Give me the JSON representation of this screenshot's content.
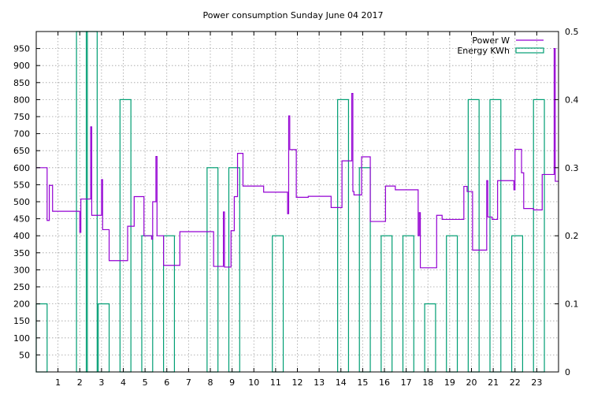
{
  "chart_data": {
    "type": "line",
    "title": "Power consumption Sunday June 04 2017",
    "grid": true,
    "legend_position": "top-right",
    "x": {
      "range": [
        0,
        24
      ],
      "ticks": [
        "1",
        "2",
        "3",
        "4",
        "5",
        "6",
        "7",
        "8",
        "9",
        "10",
        "11",
        "12",
        "13",
        "14",
        "15",
        "16",
        "17",
        "18",
        "19",
        "20",
        "21",
        "22",
        "23"
      ]
    },
    "y_left": {
      "range": [
        0,
        1000
      ],
      "ticks": [
        "50",
        "100",
        "150",
        "200",
        "250",
        "300",
        "350",
        "400",
        "450",
        "500",
        "550",
        "600",
        "650",
        "700",
        "750",
        "800",
        "850",
        "900",
        "950"
      ]
    },
    "y_right": {
      "range": [
        0,
        0.5
      ],
      "ticks": [
        "0",
        "0.1",
        "0.2",
        "0.3",
        "0.4",
        "0.5"
      ]
    },
    "colors": {
      "power": "#9400d3",
      "energy": "#009e73"
    },
    "series": [
      {
        "name": "Power W",
        "type": "step",
        "axis": "y_left",
        "points": [
          [
            0.0,
            600
          ],
          [
            0.5,
            600
          ],
          [
            0.5,
            445
          ],
          [
            0.6,
            445
          ],
          [
            0.6,
            548
          ],
          [
            0.75,
            548
          ],
          [
            0.75,
            472
          ],
          [
            2.0,
            472
          ],
          [
            2.0,
            410
          ],
          [
            2.05,
            410
          ],
          [
            2.05,
            508
          ],
          [
            2.5,
            508
          ],
          [
            2.5,
            720
          ],
          [
            2.55,
            720
          ],
          [
            2.55,
            460
          ],
          [
            3.0,
            460
          ],
          [
            3.0,
            565
          ],
          [
            3.05,
            565
          ],
          [
            3.05,
            418
          ],
          [
            3.35,
            418
          ],
          [
            3.35,
            327
          ],
          [
            4.2,
            327
          ],
          [
            4.2,
            428
          ],
          [
            4.5,
            428
          ],
          [
            4.5,
            515
          ],
          [
            4.95,
            515
          ],
          [
            4.95,
            400
          ],
          [
            5.3,
            400
          ],
          [
            5.3,
            390
          ],
          [
            5.35,
            390
          ],
          [
            5.35,
            500
          ],
          [
            5.5,
            500
          ],
          [
            5.5,
            633
          ],
          [
            5.55,
            633
          ],
          [
            5.55,
            400
          ],
          [
            5.85,
            400
          ],
          [
            5.85,
            313
          ],
          [
            6.6,
            313
          ],
          [
            6.6,
            412
          ],
          [
            8.15,
            412
          ],
          [
            8.15,
            310
          ],
          [
            8.6,
            310
          ],
          [
            8.6,
            470
          ],
          [
            8.65,
            470
          ],
          [
            8.65,
            308
          ],
          [
            8.95,
            308
          ],
          [
            8.95,
            415
          ],
          [
            9.1,
            415
          ],
          [
            9.1,
            515
          ],
          [
            9.25,
            515
          ],
          [
            9.25,
            642
          ],
          [
            9.5,
            642
          ],
          [
            9.5,
            546
          ],
          [
            10.45,
            546
          ],
          [
            10.45,
            528
          ],
          [
            11.55,
            528
          ],
          [
            11.55,
            465
          ],
          [
            11.6,
            465
          ],
          [
            11.6,
            752
          ],
          [
            11.65,
            752
          ],
          [
            11.65,
            653
          ],
          [
            11.95,
            653
          ],
          [
            11.95,
            513
          ],
          [
            12.5,
            513
          ],
          [
            12.5,
            516
          ],
          [
            13.55,
            516
          ],
          [
            13.55,
            483
          ],
          [
            14.05,
            483
          ],
          [
            14.05,
            620
          ],
          [
            14.5,
            620
          ],
          [
            14.5,
            818
          ],
          [
            14.55,
            818
          ],
          [
            14.55,
            530
          ],
          [
            14.6,
            530
          ],
          [
            14.6,
            520
          ],
          [
            14.95,
            520
          ],
          [
            14.95,
            632
          ],
          [
            15.35,
            632
          ],
          [
            15.35,
            442
          ],
          [
            16.05,
            442
          ],
          [
            16.05,
            546
          ],
          [
            16.5,
            546
          ],
          [
            16.5,
            535
          ],
          [
            17.55,
            535
          ],
          [
            17.55,
            400
          ],
          [
            17.6,
            400
          ],
          [
            17.6,
            468
          ],
          [
            17.65,
            468
          ],
          [
            17.65,
            306
          ],
          [
            18.4,
            306
          ],
          [
            18.4,
            460
          ],
          [
            18.65,
            460
          ],
          [
            18.65,
            448
          ],
          [
            19.65,
            448
          ],
          [
            19.65,
            545
          ],
          [
            19.8,
            545
          ],
          [
            19.8,
            530
          ],
          [
            20.05,
            530
          ],
          [
            20.05,
            358
          ],
          [
            20.7,
            358
          ],
          [
            20.7,
            562
          ],
          [
            20.75,
            562
          ],
          [
            20.75,
            455
          ],
          [
            20.95,
            455
          ],
          [
            20.95,
            448
          ],
          [
            21.2,
            448
          ],
          [
            21.2,
            562
          ],
          [
            21.95,
            562
          ],
          [
            21.95,
            535
          ],
          [
            22.0,
            535
          ],
          [
            22.0,
            654
          ],
          [
            22.3,
            654
          ],
          [
            22.3,
            585
          ],
          [
            22.4,
            585
          ],
          [
            22.4,
            480
          ],
          [
            22.85,
            480
          ],
          [
            22.85,
            476
          ],
          [
            23.25,
            476
          ],
          [
            23.25,
            580
          ],
          [
            23.8,
            580
          ],
          [
            23.8,
            950
          ],
          [
            23.85,
            950
          ],
          [
            23.85,
            560
          ],
          [
            24.0,
            560
          ]
        ]
      },
      {
        "name": "Energy KWh",
        "type": "bars",
        "axis": "y_right",
        "bars": [
          [
            0.0,
            0.1
          ],
          [
            1.85,
            0.5
          ],
          [
            2.3,
            0.5
          ],
          [
            2.85,
            0.1
          ],
          [
            3.85,
            0.4
          ],
          [
            4.85,
            0.2
          ],
          [
            5.85,
            0.2
          ],
          [
            7.85,
            0.3
          ],
          [
            8.85,
            0.3
          ],
          [
            10.85,
            0.2
          ],
          [
            13.85,
            0.4
          ],
          [
            14.85,
            0.3
          ],
          [
            15.85,
            0.2
          ],
          [
            16.85,
            0.2
          ],
          [
            17.85,
            0.1
          ],
          [
            18.85,
            0.2
          ],
          [
            19.85,
            0.4
          ],
          [
            20.85,
            0.4
          ],
          [
            21.85,
            0.2
          ],
          [
            22.85,
            0.4
          ]
        ],
        "bar_width": 0.5
      }
    ]
  }
}
